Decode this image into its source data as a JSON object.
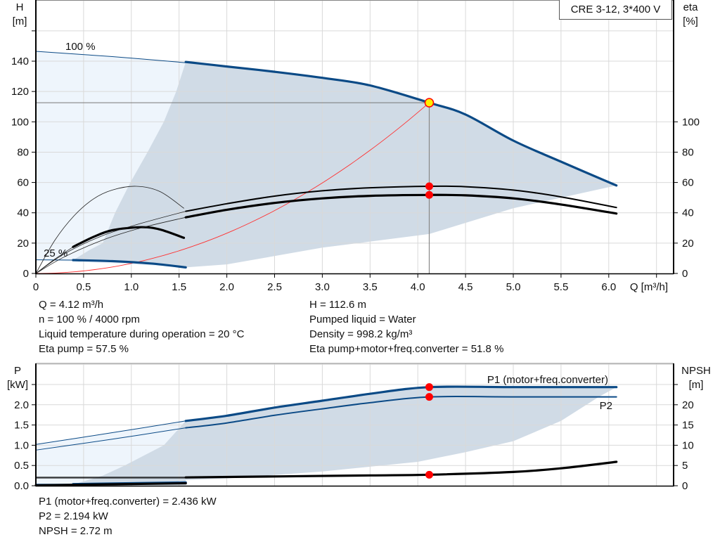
{
  "model_label": "CRE 3-12, 3*400 V",
  "colors": {
    "curve_blue": "#0b4a86",
    "range_dark": "#d0dbe6",
    "range_light": "#eef5fc",
    "duty_point": "#ff0000",
    "duty_point_fill": "#ffee00",
    "system_curve": "#ff3030",
    "grid": "#d9d9d9"
  },
  "duty_info_left": [
    "Q = 4.12 m³/h",
    "n = 100 % / 4000 rpm",
    "Liquid temperature during operation = 20 °C",
    "Eta pump = 57.5 %"
  ],
  "duty_info_right": [
    "H = 112.6 m",
    "Pumped liquid = Water",
    "Density = 998.2 kg/m³",
    "Eta pump+motor+freq.converter = 51.8 %"
  ],
  "power_info": [
    "P1 (motor+freq.converter) = 2.436 kW",
    "P2 = 2.194 kW",
    "NPSH = 2.72 m"
  ],
  "chart_data": [
    {
      "type": "line",
      "xlabel": "Q [m³/h]",
      "ylabel_title": "H",
      "ylabel_unit": "[m]",
      "y2label_title": "eta",
      "y2label_unit": "[%]",
      "xlim": [
        0,
        6.7
      ],
      "ylim": [
        0,
        180
      ],
      "y2lim": [
        0,
        180
      ],
      "grid": true,
      "xticks": [
        "0",
        "0.5",
        "1.0",
        "1.5",
        "2.0",
        "2.5",
        "3.0",
        "3.5",
        "4.0",
        "4.5",
        "5.0",
        "5.5",
        "6.0"
      ],
      "yticks": [
        "0",
        "20",
        "40",
        "60",
        "80",
        "100",
        "120",
        "140"
      ],
      "y2ticks": [
        "0",
        "20",
        "40",
        "60",
        "80",
        "100"
      ],
      "annotations": [
        "100 %",
        "25 %"
      ],
      "duty_point": {
        "Q": 4.12,
        "H": 112.6,
        "eta_pump": 57.5,
        "eta_total": 51.8
      },
      "series": [
        {
          "id": "h-100-thin",
          "weight": "thin",
          "color": "#0b4a86",
          "points": [
            [
              0,
              146.5
            ],
            [
              0.8,
              143
            ],
            [
              1.57,
              139
            ]
          ]
        },
        {
          "id": "h-100",
          "weight": "thick",
          "color": "#0b4a86",
          "points": [
            [
              1.57,
              139.5
            ],
            [
              2,
              136.5
            ],
            [
              2.5,
              133
            ],
            [
              3,
              129
            ],
            [
              3.5,
              124
            ],
            [
              4.12,
              112.6
            ],
            [
              4.5,
              104.8
            ],
            [
              5,
              87.6
            ],
            [
              5.5,
              73.7
            ],
            [
              6.08,
              58
            ]
          ]
        },
        {
          "id": "h-25-thin",
          "weight": "thin",
          "color": "#0b4a86",
          "points": [
            [
              0,
              9
            ],
            [
              0.39,
              8.8
            ]
          ]
        },
        {
          "id": "h-25",
          "weight": "thick",
          "color": "#0b4a86",
          "points": [
            [
              0.39,
              8.8
            ],
            [
              0.8,
              8.1
            ],
            [
              1.2,
              6.6
            ],
            [
              1.57,
              4
            ]
          ]
        },
        {
          "id": "eta-pump-25",
          "weight": "hair",
          "color": "#222222",
          "points": [
            [
              0,
              0
            ],
            [
              0.2,
              22
            ],
            [
              0.4,
              38
            ],
            [
              0.6,
              49
            ],
            [
              0.8,
              55
            ],
            [
              1.05,
              57.5
            ],
            [
              1.3,
              54
            ],
            [
              1.55,
              43
            ]
          ]
        },
        {
          "id": "eta-total-25-thin",
          "weight": "hair",
          "color": "#222222",
          "points": [
            [
              0,
              0
            ],
            [
              0.2,
              9.5
            ],
            [
              0.39,
              17.5
            ]
          ]
        },
        {
          "id": "eta-total-25",
          "weight": "thick",
          "color": "#000000",
          "points": [
            [
              0.39,
              17.5
            ],
            [
              0.6,
              24
            ],
            [
              0.8,
              28.5
            ],
            [
              1.1,
              30.5
            ],
            [
              1.3,
              29
            ],
            [
              1.55,
              23.5
            ]
          ]
        },
        {
          "id": "eta-pump-lead",
          "weight": "hair",
          "color": "#222222",
          "points": [
            [
              0,
              0
            ],
            [
              0.3,
              13
            ],
            [
              0.7,
              25
            ],
            [
              1.1,
              33
            ],
            [
              1.57,
              41
            ]
          ]
        },
        {
          "id": "eta-total-lead",
          "weight": "hair",
          "color": "#222222",
          "points": [
            [
              0,
              0
            ],
            [
              0.3,
              11
            ],
            [
              0.7,
              22
            ],
            [
              1.1,
              30
            ],
            [
              1.57,
              37
            ]
          ]
        },
        {
          "id": "eta-pump-100",
          "weight": "medium",
          "color": "#000000",
          "points": [
            [
              1.57,
              41
            ],
            [
              2,
              46
            ],
            [
              2.5,
              51
            ],
            [
              3,
              54.5
            ],
            [
              3.5,
              56.5
            ],
            [
              4.12,
              57.5
            ],
            [
              4.5,
              57.2
            ],
            [
              5,
              55
            ],
            [
              5.5,
              50.5
            ],
            [
              6.08,
              43.5
            ]
          ]
        },
        {
          "id": "eta-total-100",
          "weight": "thick",
          "color": "#000000",
          "points": [
            [
              1.57,
              37
            ],
            [
              2,
              42
            ],
            [
              2.5,
              46.5
            ],
            [
              3,
              49.5
            ],
            [
              3.5,
              51.2
            ],
            [
              4.12,
              51.8
            ],
            [
              4.5,
              51.5
            ],
            [
              5,
              49.5
            ],
            [
              5.5,
              45.5
            ],
            [
              6.08,
              39.5
            ]
          ]
        }
      ],
      "system_curve": {
        "k": 6.633,
        "Q_max": 4.12
      },
      "range_light": [
        [
          0,
          9
        ],
        [
          0,
          146.5
        ],
        [
          1.57,
          139
        ],
        [
          1.57,
          4
        ]
      ],
      "range_dark": [
        [
          0.39,
          8.8
        ],
        [
          0.55,
          15
        ],
        [
          0.7,
          20
        ],
        [
          0.83,
          40
        ],
        [
          0.99,
          60
        ],
        [
          1.17,
          80
        ],
        [
          1.34,
          100
        ],
        [
          1.47,
          120
        ],
        [
          1.57,
          139.5
        ],
        [
          2,
          136.5
        ],
        [
          2.5,
          133
        ],
        [
          3,
          129
        ],
        [
          3.5,
          124
        ],
        [
          4.12,
          112.6
        ],
        [
          4.5,
          104.8
        ],
        [
          5,
          87.6
        ],
        [
          5.5,
          73.7
        ],
        [
          6.08,
          58
        ],
        [
          5,
          43
        ],
        [
          4.12,
          26
        ],
        [
          3,
          17
        ],
        [
          2,
          6
        ],
        [
          1.57,
          4
        ],
        [
          1.2,
          6.6
        ],
        [
          0.8,
          8.1
        ]
      ]
    },
    {
      "type": "line",
      "ylabel_title": "P",
      "ylabel_unit": "[kW]",
      "y2label_title": "NPSH",
      "y2label_unit": "[m]",
      "xlim": [
        0,
        6.7
      ],
      "ylim": [
        0,
        3.0
      ],
      "y2lim": [
        0,
        30
      ],
      "grid": true,
      "yticks": [
        "0.0",
        "0.5",
        "1.0",
        "1.5",
        "2.0"
      ],
      "y2ticks": [
        "0",
        "5",
        "10",
        "15",
        "20"
      ],
      "series_labels": [
        "P1 (motor+freq.converter)",
        "P2"
      ],
      "duty_point": {
        "Q": 4.12,
        "P1": 2.436,
        "P2": 2.194,
        "NPSH": 2.72
      },
      "series": [
        {
          "id": "p1-thin",
          "weight": "thin",
          "color": "#0b4a86",
          "axis": "P",
          "points": [
            [
              0,
              1.02
            ],
            [
              0.8,
              1.31
            ],
            [
              1.57,
              1.6
            ]
          ]
        },
        {
          "id": "p1",
          "weight": "thick",
          "color": "#0b4a86",
          "axis": "P",
          "points": [
            [
              1.57,
              1.6
            ],
            [
              2,
              1.73
            ],
            [
              2.5,
              1.93
            ],
            [
              3,
              2.1
            ],
            [
              3.5,
              2.27
            ],
            [
              4.12,
              2.436
            ],
            [
              5,
              2.436
            ],
            [
              6.08,
              2.436
            ]
          ]
        },
        {
          "id": "p2-thin",
          "weight": "thin",
          "color": "#0b4a86",
          "axis": "P",
          "points": [
            [
              0,
              0.88
            ],
            [
              0.8,
              1.15
            ],
            [
              1.57,
              1.43
            ]
          ]
        },
        {
          "id": "p2",
          "weight": "medium",
          "color": "#0b4a86",
          "axis": "P",
          "points": [
            [
              1.57,
              1.43
            ],
            [
              2,
              1.55
            ],
            [
              2.5,
              1.74
            ],
            [
              3,
              1.9
            ],
            [
              3.5,
              2.05
            ],
            [
              4.12,
              2.194
            ],
            [
              5,
              2.194
            ],
            [
              6.08,
              2.194
            ]
          ]
        },
        {
          "id": "p-25",
          "weight": "thick",
          "color": "#0b4a86",
          "axis": "P",
          "points": [
            [
              0.39,
              0.04
            ],
            [
              1.57,
              0.08
            ]
          ]
        },
        {
          "id": "p-25-thin",
          "weight": "thin",
          "color": "#0b4a86",
          "axis": "P",
          "points": [
            [
              0,
              0.04
            ],
            [
              0.39,
              0.04
            ]
          ]
        },
        {
          "id": "npsh-25",
          "weight": "thick",
          "color": "#000000",
          "axis": "P",
          "points": [
            [
              0,
              0.01
            ],
            [
              1.57,
              0.06
            ]
          ]
        },
        {
          "id": "npsh-thin",
          "weight": "hair",
          "color": "#000000",
          "axis": "NPSH",
          "points": [
            [
              0,
              1.9
            ],
            [
              1.57,
              1.9
            ]
          ]
        },
        {
          "id": "npsh",
          "weight": "thick",
          "color": "#000000",
          "axis": "NPSH",
          "points": [
            [
              1.57,
              2.05
            ],
            [
              2.5,
              2.3
            ],
            [
              3.5,
              2.55
            ],
            [
              4.12,
              2.72
            ],
            [
              5,
              3.4
            ],
            [
              5.5,
              4.3
            ],
            [
              6.08,
              5.9
            ]
          ]
        }
      ],
      "range_light": [
        [
          0,
          0
        ],
        [
          0,
          1.02
        ],
        [
          1.57,
          1.6
        ],
        [
          1.57,
          0
        ]
      ],
      "range_dark": [
        [
          0.39,
          0.03
        ],
        [
          0.7,
          0.25
        ],
        [
          0.93,
          0.5
        ],
        [
          1.34,
          1.0
        ],
        [
          1.57,
          1.6
        ],
        [
          2,
          1.73
        ],
        [
          2.5,
          1.93
        ],
        [
          3,
          2.1
        ],
        [
          3.5,
          2.27
        ],
        [
          4.12,
          2.436
        ],
        [
          6.08,
          2.436
        ],
        [
          5.9,
          2.2
        ],
        [
          5.5,
          1.6
        ],
        [
          5,
          1.1
        ],
        [
          4.5,
          0.83
        ],
        [
          4,
          0.59
        ],
        [
          3,
          0.35
        ],
        [
          2,
          0.18
        ],
        [
          1.57,
          0.14
        ],
        [
          1.57,
          0.03
        ]
      ]
    }
  ]
}
